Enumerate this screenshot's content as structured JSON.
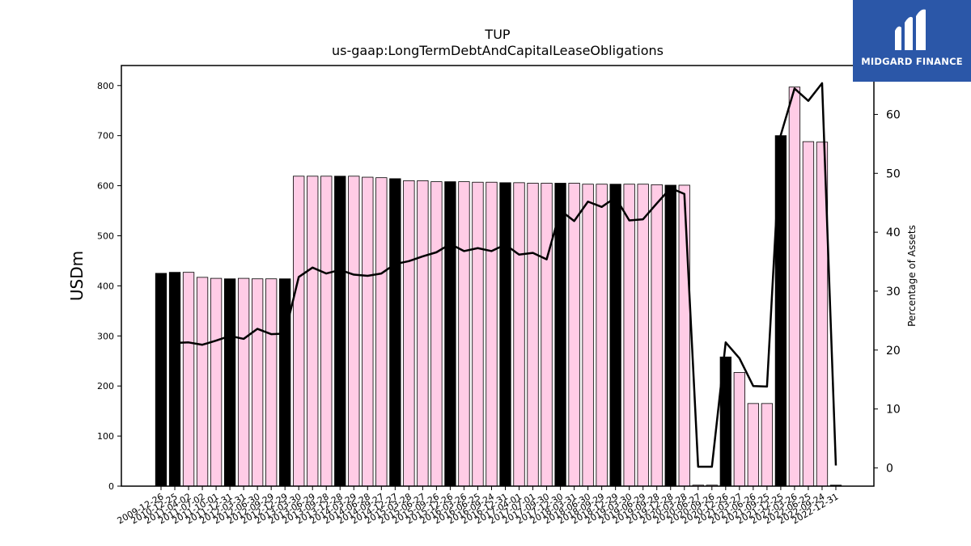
{
  "brand": {
    "name": "MIDGARD FINANCE",
    "logo_color": "#2b57a8"
  },
  "colors": {
    "bar_pink": "#ffcce6",
    "bar_black": "#000000",
    "line": "#000000"
  },
  "chart_data": {
    "type": "bar",
    "title": "TUP",
    "subtitle": "us-gaap:LongTermDebtAndCapitalLeaseObligations",
    "ylabel": "USDm",
    "ylabel_right": "Percentage of Assets",
    "ylim": [
      0,
      840
    ],
    "ylim_right": [
      -3.1,
      68.3
    ],
    "yticks": [
      0,
      100,
      200,
      300,
      400,
      500,
      600,
      700,
      800
    ],
    "yticks_right": [
      0,
      10,
      20,
      30,
      40,
      50,
      60
    ],
    "categories": [
      "2009-12-26",
      "2010-12-25",
      "2011-04-02",
      "2011-07-02",
      "2011-10-01",
      "2011-12-31",
      "2012-03-31",
      "2012-06-30",
      "2012-09-29",
      "2012-12-29",
      "2013-03-30",
      "2013-06-29",
      "2013-09-28",
      "2013-12-28",
      "2014-03-29",
      "2014-06-28",
      "2014-09-27",
      "2014-12-27",
      "2015-03-28",
      "2015-06-27",
      "2015-09-26",
      "2015-12-26",
      "2016-03-26",
      "2016-06-25",
      "2016-09-24",
      "2016-12-31",
      "2017-04-01",
      "2017-07-01",
      "2017-09-30",
      "2017-12-30",
      "2018-03-31",
      "2018-06-30",
      "2018-09-29",
      "2018-12-29",
      "2019-03-30",
      "2019-06-29",
      "2019-09-28",
      "2019-12-28",
      "2020-03-28",
      "2020-06-27",
      "2020-09-26",
      "2020-12-26",
      "2021-03-27",
      "2021-06-26",
      "2021-09-25",
      "2021-12-25",
      "2022-03-26",
      "2022-06-25",
      "2022-09-24",
      "2022-12-31"
    ],
    "series": [
      {
        "values": [
          425,
          427,
          427,
          417,
          415,
          414,
          415,
          414,
          414,
          414,
          619,
          619,
          619,
          619,
          619,
          617,
          616,
          614,
          610,
          610,
          608,
          608,
          608,
          607,
          607,
          606,
          606,
          605,
          605,
          605,
          605,
          603,
          603,
          603,
          603,
          603,
          602,
          601,
          601,
          2,
          2,
          258,
          227,
          165,
          165,
          700,
          797,
          688,
          687,
          2
        ]
      },
      {
        "type": "line",
        "axis": "right",
        "values": [
          null,
          21.2,
          21.3,
          20.9,
          21.6,
          22.4,
          21.9,
          23.6,
          22.7,
          22.8,
          32.4,
          34.0,
          33.0,
          33.6,
          32.8,
          32.6,
          33.0,
          34.6,
          35.1,
          35.9,
          36.6,
          38.0,
          36.8,
          37.3,
          36.8,
          37.9,
          36.2,
          36.5,
          35.4,
          43.7,
          41.9,
          45.2,
          44.3,
          45.9,
          42.0,
          42.2,
          44.9,
          47.5,
          46.5,
          0.2,
          0.2,
          21.3,
          18.6,
          13.9,
          13.8,
          56.5,
          64.4,
          62.3,
          65.3,
          0.4
        ]
      }
    ],
    "bar_styles": [
      "black",
      "black",
      "pink",
      "pink",
      "pink",
      "black",
      "pink",
      "pink",
      "pink",
      "black",
      "pink",
      "pink",
      "pink",
      "black",
      "pink",
      "pink",
      "pink",
      "black",
      "pink",
      "pink",
      "pink",
      "black",
      "pink",
      "pink",
      "pink",
      "black",
      "pink",
      "pink",
      "pink",
      "black",
      "pink",
      "pink",
      "pink",
      "black",
      "pink",
      "pink",
      "pink",
      "black",
      "pink",
      "pink",
      "pink",
      "black",
      "pink",
      "pink",
      "pink",
      "black",
      "pink",
      "pink",
      "pink",
      "black"
    ],
    "grid": false,
    "legend": "none"
  }
}
